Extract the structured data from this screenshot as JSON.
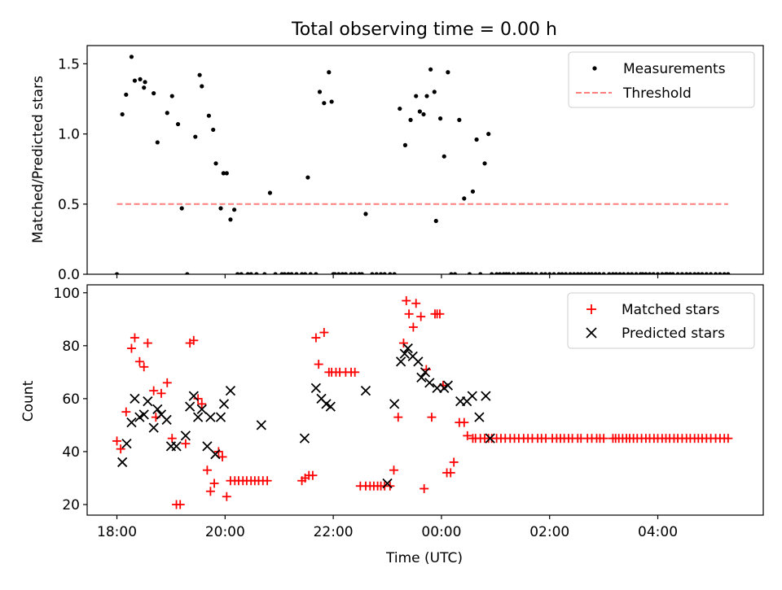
{
  "chart_data": [
    {
      "type": "scatter",
      "title": "Total observing time = 0.00 h",
      "xlabel": "",
      "ylabel": "Matched/Predicted stars",
      "xlim": [
        -0.55,
        11.95
      ],
      "ylim": [
        0,
        1.63
      ],
      "grid": false,
      "legend_placement": "top-right",
      "yticks": [
        0.0,
        0.5,
        1.0,
        1.5
      ],
      "yticklabels": [
        "0.0",
        "0.5",
        "1.0",
        "1.5"
      ],
      "series": [
        {
          "name": "Measurements",
          "marker": "dot",
          "color": "#000000",
          "x": [
            0.0,
            0.1,
            0.17,
            0.27,
            0.33,
            0.43,
            0.5,
            0.52,
            0.68,
            0.75,
            0.93,
            1.02,
            1.13,
            1.2,
            1.3,
            1.45,
            1.53,
            1.57,
            1.7,
            1.78,
            1.83,
            1.92,
            1.97,
            2.03,
            2.1,
            2.17,
            2.23,
            2.3,
            2.42,
            2.48,
            2.58,
            2.73,
            2.83,
            2.93,
            3.05,
            3.1,
            3.17,
            3.23,
            3.32,
            3.42,
            3.48,
            3.53,
            3.58,
            3.68,
            3.75,
            3.83,
            3.92,
            3.97,
            4.0,
            4.03,
            4.1,
            4.17,
            4.23,
            4.33,
            4.4,
            4.48,
            4.53,
            4.6,
            4.72,
            4.8,
            4.88,
            4.95,
            5.05,
            5.13,
            5.23,
            5.33,
            5.43,
            5.53,
            5.6,
            5.67,
            5.73,
            5.8,
            5.87,
            5.9,
            5.98,
            6.05,
            6.12,
            6.18,
            6.25,
            6.33,
            6.42,
            6.52,
            6.58,
            6.65,
            6.72,
            6.8,
            6.87,
            6.93,
            7.02,
            7.08,
            7.15,
            7.2,
            7.25,
            7.33,
            7.42,
            7.48,
            7.53,
            7.6,
            7.67,
            7.75,
            7.85,
            7.92,
            8.0,
            8.08,
            8.17,
            8.23,
            8.3,
            8.38,
            8.45,
            8.52,
            8.58,
            8.65,
            8.72,
            8.78,
            8.85,
            8.92,
            9.0,
            9.1,
            9.17,
            9.23,
            9.3,
            9.37,
            9.45,
            9.52,
            9.6,
            9.68,
            9.72,
            9.78,
            9.85,
            9.92,
            10.0,
            10.08,
            10.15,
            10.17,
            10.23,
            10.28,
            10.37,
            10.45,
            10.53,
            10.6,
            10.68,
            10.75,
            10.82,
            10.9,
            10.98,
            11.07,
            11.15,
            11.23,
            11.3
          ],
          "y": [
            0.0,
            1.14,
            1.28,
            1.55,
            1.38,
            1.39,
            1.33,
            1.37,
            1.29,
            0.94,
            1.15,
            1.27,
            1.07,
            0.47,
            0.0,
            0.98,
            1.42,
            1.34,
            1.13,
            1.03,
            0.79,
            0.47,
            0.72,
            0.72,
            0.39,
            0.46,
            0.0,
            0.0,
            0.0,
            0.0,
            0.0,
            0.0,
            0.58,
            0.0,
            0.0,
            0.0,
            0.0,
            0.0,
            0.0,
            0.0,
            0.0,
            0.69,
            0.0,
            0.0,
            1.3,
            1.22,
            1.44,
            1.23,
            0.0,
            0.0,
            0.0,
            0.0,
            0.0,
            0.0,
            0.0,
            0.0,
            0.0,
            0.43,
            0.0,
            0.0,
            0.0,
            0.0,
            0.0,
            0.0,
            1.18,
            0.92,
            1.1,
            1.27,
            1.16,
            1.14,
            1.27,
            1.46,
            1.3,
            0.38,
            1.11,
            0.84,
            1.44,
            0.0,
            0.0,
            1.1,
            0.54,
            0.0,
            0.59,
            0.96,
            0.0,
            0.79,
            1.0,
            0.0,
            0.0,
            0.0,
            0.0,
            0.0,
            0.0,
            0.0,
            0.0,
            0.0,
            0.0,
            0.0,
            0.0,
            0.0,
            0.0,
            0.0,
            0.0,
            0.0,
            0.0,
            0.0,
            0.0,
            0.0,
            0.0,
            0.0,
            0.0,
            0.0,
            0.0,
            0.0,
            0.0,
            0.0,
            0.0,
            0.0,
            0.0,
            0.0,
            0.0,
            0.0,
            0.0,
            0.0,
            0.0,
            0.0,
            0.0,
            0.0,
            0.0,
            0.0,
            0.0,
            0.0,
            0.0,
            0.0,
            0.0,
            0.0,
            0.0,
            0.0,
            0.0,
            0.0,
            0.0,
            0.0,
            0.0,
            0.0,
            0.0,
            0.0,
            0.0,
            0.0,
            0.0
          ]
        },
        {
          "name": "Threshold",
          "marker": "dashed-line",
          "color": "#ff7f7f",
          "x": [
            0.0,
            11.3
          ],
          "y": [
            0.5,
            0.5
          ]
        }
      ]
    },
    {
      "type": "scatter",
      "title": "",
      "xlabel": "Time (UTC)",
      "ylabel": "Count",
      "xlim": [
        -0.55,
        11.95
      ],
      "ylim": [
        16,
        103
      ],
      "grid": false,
      "legend_placement": "top-right",
      "xticks": [
        0,
        2,
        4,
        6,
        8,
        10
      ],
      "xticklabels": [
        "18:00",
        "20:00",
        "22:00",
        "00:00",
        "02:00",
        "04:00"
      ],
      "yticks": [
        20,
        40,
        60,
        80,
        100
      ],
      "yticklabels": [
        "20",
        "40",
        "60",
        "80",
        "100"
      ],
      "series": [
        {
          "name": "Matched stars",
          "marker": "plus",
          "color": "#ff0000",
          "x": [
            0.0,
            0.07,
            0.17,
            0.27,
            0.33,
            0.42,
            0.5,
            0.57,
            0.68,
            0.72,
            0.82,
            0.93,
            1.02,
            1.1,
            1.17,
            1.27,
            1.35,
            1.42,
            1.5,
            1.57,
            1.67,
            1.73,
            1.8,
            1.88,
            1.95,
            2.03,
            2.1,
            2.18,
            2.25,
            2.33,
            2.4,
            2.48,
            2.55,
            2.62,
            2.7,
            2.78,
            3.42,
            3.48,
            3.55,
            3.62,
            3.68,
            3.73,
            3.83,
            3.92,
            3.97,
            4.05,
            4.12,
            4.23,
            4.33,
            4.4,
            4.5,
            4.6,
            4.68,
            4.75,
            4.82,
            4.88,
            4.95,
            5.05,
            5.12,
            5.2,
            5.3,
            5.35,
            5.4,
            5.48,
            5.53,
            5.62,
            5.68,
            5.72,
            5.82,
            5.88,
            5.92,
            5.97,
            6.03,
            6.1,
            6.17,
            6.23,
            6.33,
            6.42,
            6.48,
            6.58,
            6.63,
            6.72,
            6.8,
            6.87,
            6.93,
            7.02,
            7.1,
            7.18,
            7.27,
            7.35,
            7.43,
            7.52,
            7.6,
            7.68,
            7.78,
            7.85,
            7.93,
            8.05,
            8.13,
            8.2,
            8.27,
            8.35,
            8.42,
            8.52,
            8.58,
            8.7,
            8.78,
            8.87,
            8.93,
            9.0,
            9.17,
            9.22,
            9.28,
            9.35,
            9.42,
            9.48,
            9.55,
            9.62,
            9.7,
            9.78,
            9.85,
            9.93,
            10.0,
            10.08,
            10.15,
            10.22,
            10.3,
            10.37,
            10.45,
            10.53,
            10.6,
            10.68,
            10.75,
            10.82,
            10.9,
            10.98,
            11.07,
            11.15,
            11.23,
            11.3
          ],
          "y": [
            44,
            41,
            55,
            79,
            83,
            74,
            72,
            81,
            63,
            53,
            62,
            66,
            45,
            20,
            20,
            43,
            81,
            82,
            60,
            58,
            33,
            25,
            28,
            40,
            38,
            23,
            29,
            29,
            29,
            29,
            29,
            29,
            29,
            29,
            29,
            29,
            29,
            30,
            31,
            31,
            83,
            73,
            85,
            70,
            70,
            70,
            70,
            70,
            70,
            70,
            27,
            27,
            27,
            27,
            27,
            27,
            27,
            27,
            33,
            53,
            81,
            97,
            92,
            87,
            96,
            91,
            26,
            71,
            53,
            92,
            92,
            92,
            65,
            32,
            32,
            36,
            51,
            51,
            46,
            45,
            45,
            45,
            45,
            45,
            45,
            45,
            45,
            45,
            45,
            45,
            45,
            45,
            45,
            45,
            45,
            45,
            45,
            45,
            45,
            45,
            45,
            45,
            45,
            45,
            45,
            45,
            45,
            45,
            45,
            45,
            45,
            45,
            45,
            45,
            45,
            45,
            45,
            45,
            45,
            45,
            45,
            45,
            45,
            45,
            45,
            45,
            45,
            45,
            45,
            45,
            45,
            45,
            45,
            45,
            45,
            45,
            45,
            45,
            45,
            45
          ]
        },
        {
          "name": "Predicted stars",
          "marker": "x",
          "color": "#000000",
          "x": [
            0.1,
            0.18,
            0.27,
            0.33,
            0.42,
            0.5,
            0.57,
            0.68,
            0.75,
            0.82,
            0.92,
            1.0,
            1.1,
            1.27,
            1.35,
            1.42,
            1.5,
            1.57,
            1.67,
            1.73,
            1.82,
            1.92,
            1.98,
            2.1,
            2.67,
            3.47,
            3.68,
            3.78,
            3.87,
            3.95,
            4.6,
            5.0,
            5.13,
            5.25,
            5.32,
            5.38,
            5.47,
            5.57,
            5.63,
            5.7,
            5.78,
            5.92,
            6.05,
            6.12,
            6.35,
            6.47,
            6.57,
            6.7,
            6.82,
            6.9
          ],
          "y": [
            36,
            43,
            51,
            60,
            53,
            54,
            59,
            49,
            56,
            54,
            52,
            42,
            42,
            46,
            57,
            61,
            53,
            56,
            42,
            53,
            39,
            53,
            58,
            63,
            50,
            45,
            64,
            60,
            58,
            57,
            63,
            28,
            58,
            74,
            77,
            79,
            76,
            74,
            68,
            70,
            66,
            64,
            64,
            65,
            59,
            59,
            61,
            53,
            61,
            45
          ]
        }
      ]
    }
  ]
}
